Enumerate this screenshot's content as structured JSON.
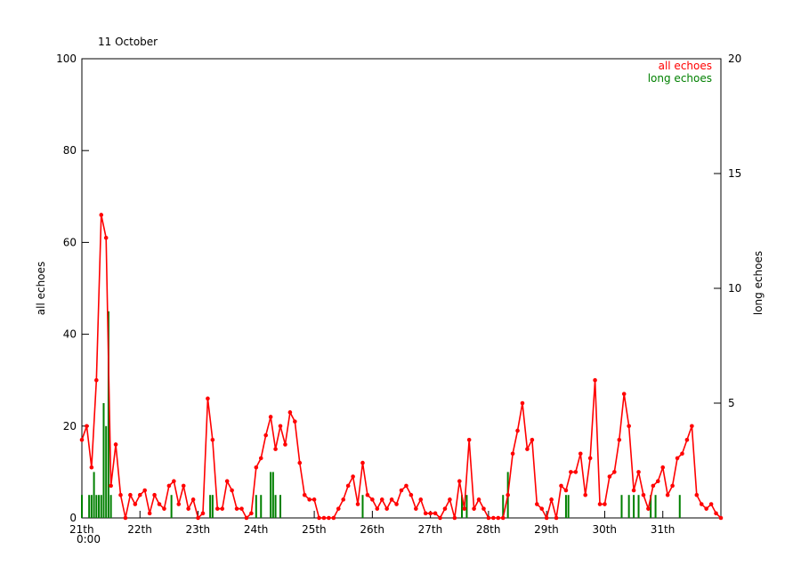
{
  "chart_data": {
    "type": "line",
    "title": "11 October",
    "ylabel": "all echoes",
    "y2label": "long echoes",
    "xlim": [
      0,
      264
    ],
    "xticks": [
      {
        "value": 0,
        "label": "21th"
      },
      {
        "value": 24,
        "label": "22th"
      },
      {
        "value": 48,
        "label": "23th"
      },
      {
        "value": 72,
        "label": "24th"
      },
      {
        "value": 96,
        "label": "25th"
      },
      {
        "value": 120,
        "label": "26th"
      },
      {
        "value": 144,
        "label": "27th"
      },
      {
        "value": 168,
        "label": "28th"
      },
      {
        "value": 192,
        "label": "29th"
      },
      {
        "value": 216,
        "label": "30th"
      },
      {
        "value": 240,
        "label": "31th"
      }
    ],
    "xtick_sublabel": "0:00",
    "ylim": [
      0,
      100
    ],
    "yticks": [
      0,
      20,
      40,
      60,
      80,
      100
    ],
    "y2lim": [
      0,
      20
    ],
    "y2ticks": [
      5,
      10,
      15,
      20
    ],
    "legend": "top-right",
    "series": [
      {
        "name": "all echoes",
        "color": "#ff0000",
        "x": [
          0,
          2,
          4,
          6,
          8,
          10,
          12,
          14,
          16,
          18,
          20,
          22,
          24,
          26,
          28,
          30,
          32,
          34,
          36,
          38,
          40,
          42,
          44,
          46,
          48,
          50,
          52,
          54,
          56,
          58,
          60,
          62,
          64,
          66,
          68,
          70,
          72,
          74,
          76,
          78,
          80,
          82,
          84,
          86,
          88,
          90,
          92,
          94,
          96,
          98,
          100,
          102,
          104,
          106,
          108,
          110,
          112,
          114,
          116,
          118,
          120,
          122,
          124,
          126,
          128,
          130,
          132,
          134,
          136,
          138,
          140,
          142,
          144,
          146,
          148,
          150,
          152,
          154,
          156,
          158,
          160,
          162,
          164,
          166,
          168,
          170,
          172,
          174,
          176,
          178,
          180,
          182,
          184,
          186,
          188,
          190,
          192,
          194,
          196,
          198,
          200,
          202,
          204,
          206,
          208,
          210,
          212,
          214,
          216,
          218,
          220,
          222,
          224,
          226,
          228,
          230,
          232,
          234,
          236,
          238,
          240,
          242,
          244,
          246,
          248,
          250,
          252,
          254,
          256,
          258,
          260,
          262,
          264
        ],
        "values": [
          17,
          20,
          11,
          30,
          66,
          61,
          7,
          16,
          5,
          0,
          5,
          3,
          5,
          6,
          1,
          5,
          3,
          2,
          7,
          8,
          3,
          7,
          2,
          4,
          0,
          1,
          26,
          17,
          2,
          2,
          8,
          6,
          2,
          2,
          0,
          1,
          11,
          13,
          18,
          22,
          15,
          20,
          16,
          23,
          21,
          12,
          5,
          4,
          4,
          0,
          0,
          0,
          0,
          2,
          4,
          7,
          9,
          3,
          12,
          5,
          4,
          2,
          4,
          2,
          4,
          3,
          6,
          7,
          5,
          2,
          4,
          1,
          1,
          1,
          0,
          2,
          4,
          0,
          8,
          2,
          17,
          2,
          4,
          2,
          0,
          0,
          0,
          0,
          5,
          14,
          19,
          25,
          15,
          17,
          3,
          2,
          0,
          4,
          0,
          7,
          6,
          10,
          10,
          14,
          5,
          13,
          30,
          3,
          3,
          9,
          10,
          17,
          27,
          20,
          6,
          10,
          5,
          2,
          7,
          8,
          11,
          5,
          7,
          13,
          14,
          17,
          20,
          5,
          3,
          2,
          3,
          1,
          0
        ]
      },
      {
        "name": "long echoes",
        "color": "#008000",
        "axis": "y2",
        "type": "bar",
        "x": [
          0,
          3,
          4,
          5,
          6,
          7,
          8,
          9,
          10,
          11,
          12,
          37,
          53,
          54,
          72,
          74,
          78,
          79,
          80,
          82,
          116,
          157,
          159,
          174,
          176,
          200,
          201,
          223,
          226,
          228,
          230,
          235,
          237,
          247
        ],
        "values": [
          1,
          1,
          1,
          2,
          1,
          1,
          1,
          5,
          4,
          9,
          1,
          1,
          1,
          1,
          1,
          1,
          2,
          2,
          1,
          1,
          1,
          1,
          1,
          1,
          2,
          1,
          1,
          1,
          1,
          1,
          1,
          1,
          1,
          1
        ]
      }
    ]
  }
}
